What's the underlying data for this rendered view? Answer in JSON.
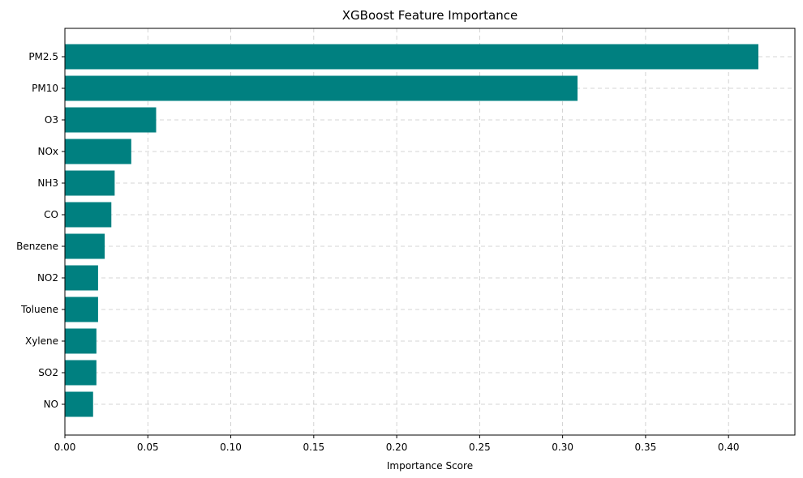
{
  "chart_data": {
    "type": "bar",
    "orientation": "horizontal",
    "title": "XGBoost Feature Importance",
    "xlabel": "Importance Score",
    "ylabel": "",
    "categories": [
      "PM2.5",
      "PM10",
      "O3",
      "NOx",
      "NH3",
      "CO",
      "Benzene",
      "NO2",
      "Toluene",
      "Xylene",
      "SO2",
      "NO"
    ],
    "values": [
      0.418,
      0.309,
      0.055,
      0.04,
      0.03,
      0.028,
      0.024,
      0.02,
      0.02,
      0.019,
      0.019,
      0.017
    ],
    "xlim": [
      0,
      0.44
    ],
    "xticks": [
      "0.00",
      "0.05",
      "0.10",
      "0.15",
      "0.20",
      "0.25",
      "0.30",
      "0.35",
      "0.40"
    ],
    "grid": true,
    "bar_color": "#008080"
  }
}
